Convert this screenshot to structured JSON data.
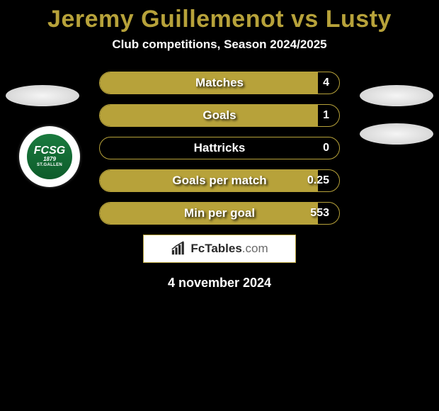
{
  "title": "Jeremy Guillemenot vs Lusty",
  "subtitle": "Club competitions, Season 2024/2025",
  "colors": {
    "accent": "#b7a23a",
    "background": "#000000",
    "text": "#ffffff",
    "brand_text": "#292929",
    "badge_green_top": "#1a7a3e",
    "badge_green_bottom": "#0d5c2a"
  },
  "club_badge": {
    "line1": "FCSG",
    "line2": "1879",
    "line3": "ST.GALLEN"
  },
  "stats": [
    {
      "label": "Matches",
      "value": "4",
      "fill_pct": 91
    },
    {
      "label": "Goals",
      "value": "1",
      "fill_pct": 91
    },
    {
      "label": "Hattricks",
      "value": "0",
      "fill_pct": 0
    },
    {
      "label": "Goals per match",
      "value": "0.25",
      "fill_pct": 91
    },
    {
      "label": "Min per goal",
      "value": "553",
      "fill_pct": 91
    }
  ],
  "brand": {
    "name": "FcTables",
    "suffix": ".com"
  },
  "date": "4 november 2024"
}
